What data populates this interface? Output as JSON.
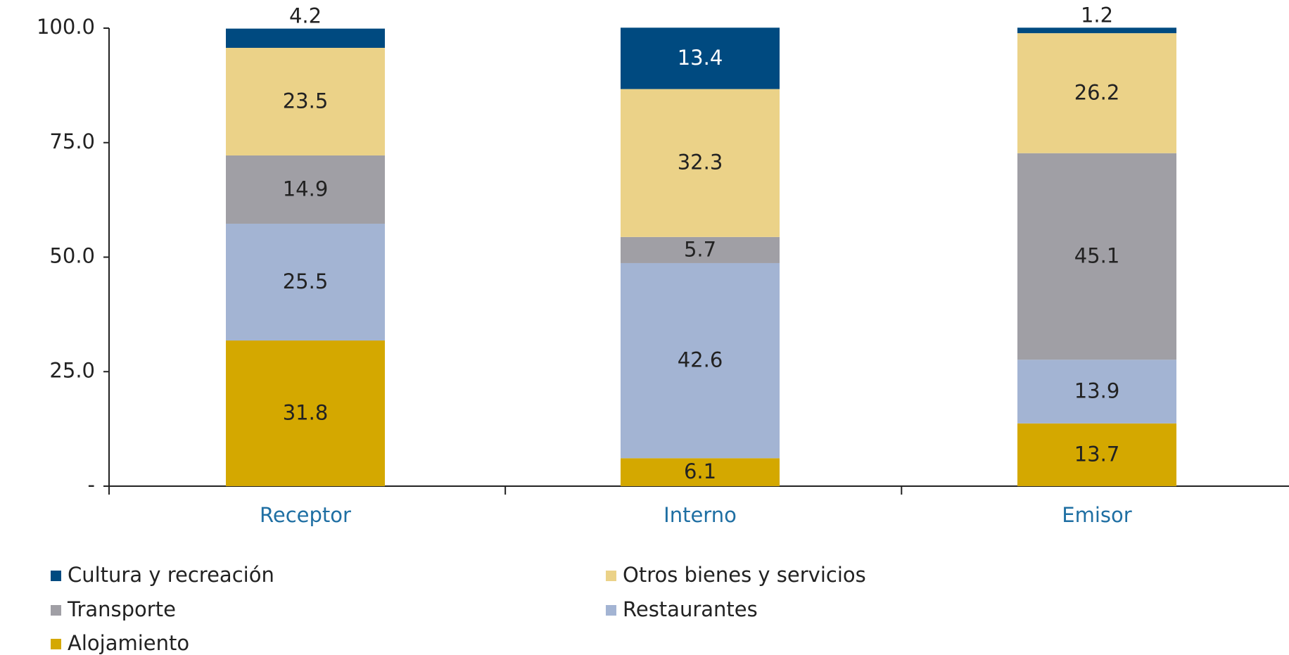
{
  "chart_data": {
    "type": "stacked_bar",
    "categories": [
      "Receptor",
      "Interno",
      "Emisor"
    ],
    "series": [
      {
        "name": "Alojamiento",
        "color": "#d4a800",
        "values": [
          31.8,
          6.1,
          13.7
        ]
      },
      {
        "name": "Restaurantes",
        "color": "#a3b4d3",
        "values": [
          25.5,
          42.6,
          13.9
        ]
      },
      {
        "name": "Transporte",
        "color": "#a09fa5",
        "values": [
          14.9,
          5.7,
          45.1
        ]
      },
      {
        "name": "Otros bienes y servicios",
        "color": "#ebd288",
        "values": [
          23.5,
          32.3,
          26.2
        ]
      },
      {
        "name": "Cultura y recreación",
        "color": "#004a80",
        "values": [
          4.2,
          13.4,
          1.2
        ]
      }
    ],
    "ylim": [
      0,
      100
    ],
    "yticks": [
      {
        "value": 0,
        "label": "-"
      },
      {
        "value": 25,
        "label": "25.0"
      },
      {
        "value": 50,
        "label": "50.0"
      },
      {
        "value": 75,
        "label": "75.0"
      },
      {
        "value": 100,
        "label": "100.0"
      }
    ],
    "grid": false
  }
}
